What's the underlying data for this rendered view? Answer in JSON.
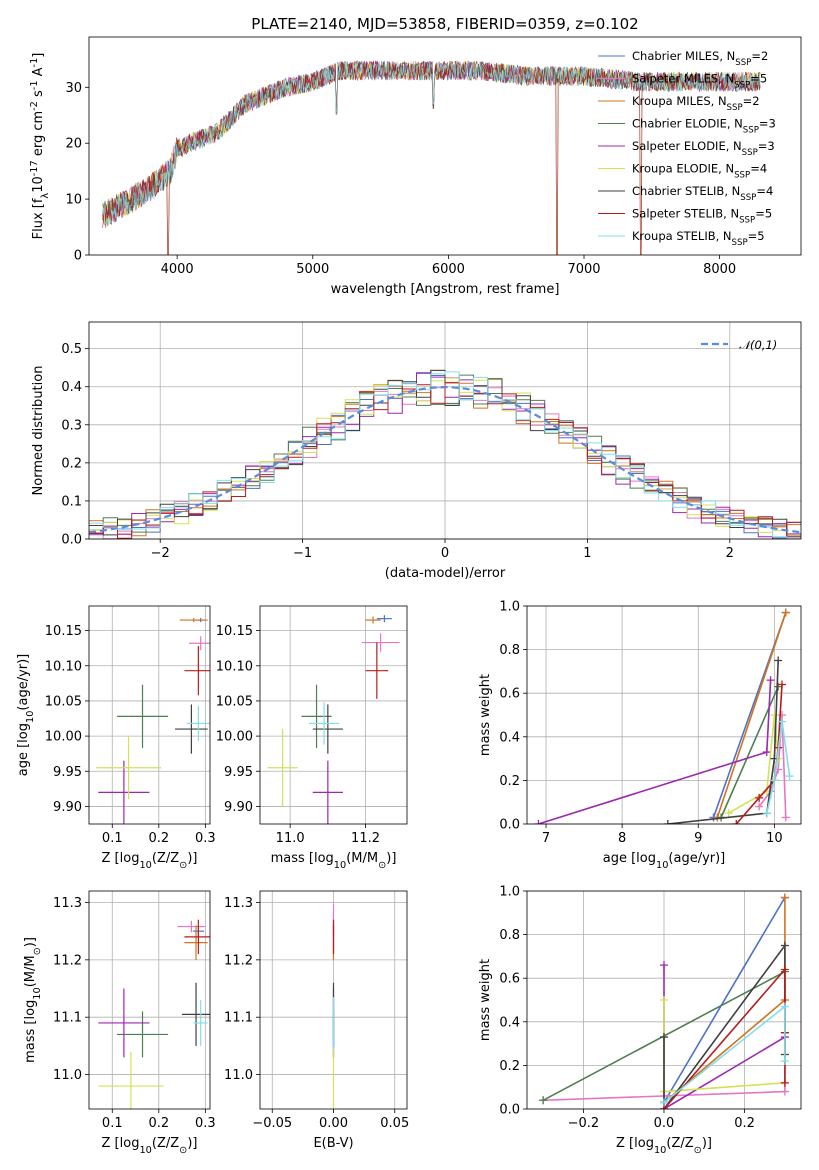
{
  "page_title": "PLATE=2140, MJD=53858, FIBERID=0359, z=0.102",
  "models": [
    {
      "label": "Chabrier MILES, N$_{SSP}$=2",
      "color": "#4c72cc"
    },
    {
      "label": "Salpeter MILES, N$_{SSP}$=5",
      "color": "#e377c2"
    },
    {
      "label": "Kroupa MILES, N$_{SSP}$=2",
      "color": "#d2731e"
    },
    {
      "label": "Chabrier ELODIE, N$_{SSP}$=3",
      "color": "#4e7f50"
    },
    {
      "label": "Salpeter ELODIE, N$_{SSP}$=3",
      "color": "#9c27b0"
    },
    {
      "label": "Kroupa ELODIE, N$_{SSP}$=4",
      "color": "#d4e157"
    },
    {
      "label": "Chabrier STELIB, N$_{SSP}$=4",
      "color": "#404040"
    },
    {
      "label": "Salpeter STELIB, N$_{SSP}$=5",
      "color": "#b71c1c"
    },
    {
      "label": "Kroupa STELIB, N$_{SSP}$=5",
      "color": "#80deea"
    }
  ],
  "chart_data": [
    {
      "id": "spectrum",
      "type": "line",
      "xlabel": "wavelength [Angstrom, rest frame]",
      "ylabel": "Flux [f$_\\lambda$10$^{-17}$ erg cm$^{-2}$ s$^{-1}$ A$^{-1}$]",
      "xlim": [
        3350,
        8600
      ],
      "ylim": [
        0,
        39
      ],
      "xticks": [
        4000,
        5000,
        6000,
        7000,
        8000
      ],
      "yticks": [
        0,
        10,
        20,
        30
      ],
      "continuum": [
        [
          3450,
          7
        ],
        [
          3600,
          9
        ],
        [
          3800,
          12
        ],
        [
          3950,
          15
        ],
        [
          4000,
          19
        ],
        [
          4300,
          22
        ],
        [
          4500,
          27
        ],
        [
          4800,
          30
        ],
        [
          5000,
          31
        ],
        [
          5200,
          33
        ],
        [
          5500,
          33
        ],
        [
          5900,
          33
        ],
        [
          6200,
          33
        ],
        [
          6600,
          32
        ],
        [
          7000,
          32
        ],
        [
          7400,
          31
        ],
        [
          7800,
          31
        ],
        [
          8300,
          31
        ]
      ],
      "features": [
        {
          "x": 3934,
          "y": 0
        },
        {
          "x": 5175,
          "y": 25
        },
        {
          "x": 5890,
          "y": 26
        },
        {
          "x": 6800,
          "y": 0
        },
        {
          "x": 7420,
          "y": 0
        }
      ],
      "legend": "upper right",
      "grid": false
    },
    {
      "id": "residuals",
      "type": "step",
      "xlabel": "(data-model)/error",
      "ylabel": "Normed distribution",
      "xlim": [
        -2.5,
        2.5
      ],
      "ylim": [
        0,
        0.57
      ],
      "xticks": [
        -2,
        -1,
        0,
        1,
        2
      ],
      "yticks": [
        0.0,
        0.1,
        0.2,
        0.3,
        0.4,
        0.5
      ],
      "reference_label": "$\\mathcal{N}(0,1)$",
      "reference_mean": 0,
      "reference_sigma": 1,
      "grid": true
    },
    {
      "id": "age-vs-Z",
      "type": "errorbar",
      "xlabel": "Z [log$_{10}$($Z/Z_\\odot$)]",
      "ylabel": "age  [log$_{10}$($age/yr$)]",
      "xlim": [
        0.05,
        0.31
      ],
      "ylim": [
        9.875,
        10.185
      ],
      "xticks": [
        0.1,
        0.2,
        0.3
      ],
      "yticks": [
        9.9,
        9.95,
        10.0,
        10.05,
        10.1,
        10.15
      ],
      "points": [
        {
          "x": 0.29,
          "y": 10.165,
          "xerr": 0.01,
          "yerr": 0.003
        },
        {
          "x": 0.29,
          "y": 10.132,
          "xerr": 0.025,
          "yerr": 0.01
        },
        {
          "x": 0.275,
          "y": 10.165,
          "xerr": 0.03,
          "yerr": 0.003
        },
        {
          "x": 0.165,
          "y": 10.028,
          "xerr": 0.055,
          "yerr": 0.045
        },
        {
          "x": 0.125,
          "y": 9.92,
          "xerr": 0.055,
          "yerr": 0.045
        },
        {
          "x": 0.135,
          "y": 9.955,
          "xerr": 0.07,
          "yerr": 0.045
        },
        {
          "x": 0.27,
          "y": 10.01,
          "xerr": 0.035,
          "yerr": 0.035
        },
        {
          "x": 0.285,
          "y": 10.093,
          "xerr": 0.03,
          "yerr": 0.035
        },
        {
          "x": 0.285,
          "y": 10.018,
          "xerr": 0.025,
          "yerr": 0.025
        }
      ],
      "grid": true
    },
    {
      "id": "age-vs-mass",
      "type": "errorbar",
      "xlabel": "mass [log$_{10}$($M/M_\\odot$)]",
      "ylabel": "",
      "xlim": [
        10.92,
        11.31
      ],
      "ylim": [
        9.875,
        10.185
      ],
      "xticks": [
        11.0,
        11.2
      ],
      "yticks": [
        9.9,
        9.95,
        10.0,
        10.05,
        10.1,
        10.15
      ],
      "points": [
        {
          "x": 11.25,
          "y": 10.167,
          "xerr": 0.02,
          "yerr": 0.005
        },
        {
          "x": 11.24,
          "y": 10.133,
          "xerr": 0.05,
          "yerr": 0.013
        },
        {
          "x": 11.22,
          "y": 10.165,
          "xerr": 0.02,
          "yerr": 0.005
        },
        {
          "x": 11.07,
          "y": 10.028,
          "xerr": 0.04,
          "yerr": 0.045
        },
        {
          "x": 11.1,
          "y": 9.92,
          "xerr": 0.04,
          "yerr": 0.045
        },
        {
          "x": 10.98,
          "y": 9.955,
          "xerr": 0.04,
          "yerr": 0.055
        },
        {
          "x": 11.1,
          "y": 10.01,
          "xerr": 0.04,
          "yerr": 0.035
        },
        {
          "x": 11.23,
          "y": 10.093,
          "xerr": 0.03,
          "yerr": 0.04
        },
        {
          "x": 11.09,
          "y": 10.018,
          "xerr": 0.04,
          "yerr": 0.03
        }
      ],
      "grid": true
    },
    {
      "id": "massweight-vs-age",
      "type": "line",
      "xlabel": "age  [log$_{10}$($age/yr$)]",
      "ylabel": "mass weight",
      "xlim": [
        6.75,
        10.35
      ],
      "ylim": [
        0,
        1.0
      ],
      "xticks": [
        7,
        8,
        9,
        10
      ],
      "yticks": [
        0.0,
        0.2,
        0.4,
        0.6,
        0.8,
        1.0
      ],
      "series": [
        {
          "x": [
            9.2,
            10.15
          ],
          "y": [
            0.03,
            0.97
          ]
        },
        {
          "x": [
            9.8,
            9.95,
            10.05,
            10.1,
            10.15
          ],
          "y": [
            0.08,
            0.15,
            0.25,
            0.5,
            0.03
          ]
        },
        {
          "x": [
            9.25,
            10.15
          ],
          "y": [
            0.03,
            0.97
          ]
        },
        {
          "x": [
            9.3,
            10.05
          ],
          "y": [
            0.03,
            0.63
          ]
        },
        {
          "x": [
            6.9,
            9.9,
            9.95
          ],
          "y": [
            0.0,
            0.33,
            0.66
          ]
        },
        {
          "x": [
            9.4,
            9.9,
            10.0,
            10.05
          ],
          "y": [
            0.05,
            0.15,
            0.5,
            0.3
          ]
        },
        {
          "x": [
            8.6,
            9.9,
            10.0,
            10.05
          ],
          "y": [
            0.0,
            0.05,
            0.3,
            0.75
          ]
        },
        {
          "x": [
            9.5,
            9.8,
            10.0,
            10.05,
            10.1
          ],
          "y": [
            0.0,
            0.12,
            0.2,
            0.35,
            0.64
          ]
        },
        {
          "x": [
            9.9,
            10.0,
            10.1,
            10.2
          ],
          "y": [
            0.05,
            0.2,
            0.47,
            0.22
          ]
        }
      ],
      "grid": true
    },
    {
      "id": "mass-vs-Z",
      "type": "errorbar",
      "xlabel": "Z [log$_{10}$($Z/Z_\\odot$)]",
      "ylabel": "mass [log$_{10}$($M/M_\\odot$)]",
      "xlim": [
        0.05,
        0.31
      ],
      "ylim": [
        10.94,
        11.32
      ],
      "xticks": [
        0.1,
        0.2,
        0.3
      ],
      "yticks": [
        11.0,
        11.1,
        11.2,
        11.3
      ],
      "points": [
        {
          "x": 0.285,
          "y": 11.25,
          "xerr": 0.012,
          "yerr": 0.01
        },
        {
          "x": 0.27,
          "y": 11.258,
          "xerr": 0.03,
          "yerr": 0.01
        },
        {
          "x": 0.28,
          "y": 11.23,
          "xerr": 0.025,
          "yerr": 0.03
        },
        {
          "x": 0.165,
          "y": 11.07,
          "xerr": 0.055,
          "yerr": 0.04
        },
        {
          "x": 0.125,
          "y": 11.09,
          "xerr": 0.055,
          "yerr": 0.06
        },
        {
          "x": 0.14,
          "y": 10.98,
          "xerr": 0.07,
          "yerr": 0.06
        },
        {
          "x": 0.28,
          "y": 11.105,
          "xerr": 0.03,
          "yerr": 0.055
        },
        {
          "x": 0.285,
          "y": 11.24,
          "xerr": 0.03,
          "yerr": 0.03
        },
        {
          "x": 0.29,
          "y": 11.09,
          "xerr": 0.015,
          "yerr": 0.04
        }
      ],
      "grid": true
    },
    {
      "id": "mass-vs-EBV",
      "type": "errorbar",
      "xlabel": "E(B-V)",
      "ylabel": "",
      "xlim": [
        -0.06,
        0.06
      ],
      "ylim": [
        10.94,
        11.32
      ],
      "xticks": [
        -0.05,
        0.0,
        0.05
      ],
      "yticks": [
        11.0,
        11.1,
        11.2,
        11.3
      ],
      "points": [
        {
          "x": 0,
          "y": 11.25,
          "xerr": 0,
          "yerr": 0.01
        },
        {
          "x": 0,
          "y": 11.258,
          "xerr": 0,
          "yerr": 0.04
        },
        {
          "x": 0,
          "y": 11.23,
          "xerr": 0,
          "yerr": 0.03
        },
        {
          "x": 0,
          "y": 11.07,
          "xerr": 0,
          "yerr": 0.04
        },
        {
          "x": 0,
          "y": 11.09,
          "xerr": 0,
          "yerr": 0.06
        },
        {
          "x": 0,
          "y": 10.98,
          "xerr": 0,
          "yerr": 0.07
        },
        {
          "x": 0,
          "y": 11.105,
          "xerr": 0,
          "yerr": 0.055
        },
        {
          "x": 0,
          "y": 11.24,
          "xerr": 0,
          "yerr": 0.03
        },
        {
          "x": 0,
          "y": 11.09,
          "xerr": 0,
          "yerr": 0.045
        }
      ],
      "grid": true
    },
    {
      "id": "massweight-vs-Z",
      "type": "line",
      "xlabel": "Z [log$_{10}$($Z/Z_\\odot$)]",
      "ylabel": "mass weight",
      "xlim": [
        -0.34,
        0.34
      ],
      "ylim": [
        0,
        1.0
      ],
      "xticks": [
        -0.2,
        0.0,
        0.2
      ],
      "yticks": [
        0.0,
        0.2,
        0.4,
        0.6,
        0.8,
        1.0
      ],
      "series": [
        {
          "x": [
            0.0,
            0.3
          ],
          "y": [
            0.03,
            0.97
          ]
        },
        {
          "x": [
            -0.3,
            0.3,
            0.3,
            0.3
          ],
          "y": [
            0.04,
            0.08,
            0.35,
            0.5
          ]
        },
        {
          "x": [
            0.0,
            0.3,
            0.3
          ],
          "y": [
            0.03,
            0.5,
            0.97
          ]
        },
        {
          "x": [
            -0.3,
            0.3
          ],
          "y": [
            0.04,
            0.63
          ]
        },
        {
          "x": [
            0.0,
            0.0,
            0.3
          ],
          "y": [
            0.66,
            0.0,
            0.33
          ]
        },
        {
          "x": [
            0.0,
            0.0,
            0.3
          ],
          "y": [
            0.5,
            0.08,
            0.12
          ]
        },
        {
          "x": [
            0.0,
            0.0,
            0.3,
            0.3
          ],
          "y": [
            0.33,
            0.0,
            0.75,
            0.25
          ]
        },
        {
          "x": [
            0.0,
            0.3,
            0.3,
            0.3
          ],
          "y": [
            0.0,
            0.64,
            0.35,
            0.12
          ]
        },
        {
          "x": [
            0.0,
            0.3,
            0.3
          ],
          "y": [
            0.03,
            0.47,
            0.22
          ]
        }
      ],
      "grid": true
    }
  ]
}
